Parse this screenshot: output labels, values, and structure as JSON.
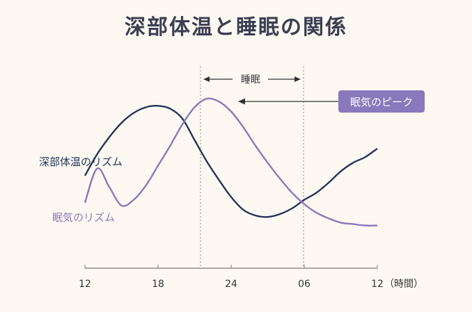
{
  "chart_data": {
    "type": "line",
    "title": "深部体温と睡眠の関係",
    "x_ticks": [
      "12",
      "18",
      "24",
      "06",
      "12"
    ],
    "x_unit_label": "（時間）",
    "sleep_label": "睡眠",
    "sleep_period": [
      "21",
      "06"
    ],
    "peak_label": "眠気のピーク",
    "series": [
      {
        "name": "深部体温のリズム",
        "color": "#22345a",
        "points": [
          [
            12,
            0.45
          ],
          [
            13,
            0.6
          ],
          [
            14,
            0.72
          ],
          [
            15,
            0.82
          ],
          [
            16,
            0.89
          ],
          [
            17,
            0.93
          ],
          [
            18,
            0.94
          ],
          [
            19,
            0.92
          ],
          [
            20,
            0.85
          ],
          [
            21,
            0.7
          ],
          [
            22,
            0.55
          ],
          [
            23,
            0.42
          ],
          [
            24,
            0.3
          ],
          [
            25,
            0.21
          ],
          [
            26,
            0.17
          ],
          [
            27,
            0.16
          ],
          [
            28,
            0.18
          ],
          [
            29,
            0.22
          ],
          [
            30,
            0.28
          ],
          [
            31,
            0.33
          ],
          [
            32,
            0.4
          ],
          [
            33,
            0.48
          ],
          [
            34,
            0.54
          ],
          [
            35,
            0.58
          ],
          [
            36,
            0.64
          ]
        ]
      },
      {
        "name": "眠気のリズム",
        "color": "#8878bc",
        "points": [
          [
            12,
            0.26
          ],
          [
            13,
            0.5
          ],
          [
            14,
            0.37
          ],
          [
            15,
            0.24
          ],
          [
            16,
            0.28
          ],
          [
            17,
            0.38
          ],
          [
            18,
            0.52
          ],
          [
            19,
            0.66
          ],
          [
            20,
            0.81
          ],
          [
            21,
            0.93
          ],
          [
            22,
            0.99
          ],
          [
            23,
            0.97
          ],
          [
            24,
            0.9
          ],
          [
            25,
            0.79
          ],
          [
            26,
            0.66
          ],
          [
            27,
            0.54
          ],
          [
            28,
            0.43
          ],
          [
            29,
            0.33
          ],
          [
            30,
            0.25
          ],
          [
            31,
            0.19
          ],
          [
            32,
            0.15
          ],
          [
            33,
            0.12
          ],
          [
            34,
            0.11
          ],
          [
            35,
            0.1
          ],
          [
            36,
            0.1
          ]
        ]
      }
    ]
  }
}
